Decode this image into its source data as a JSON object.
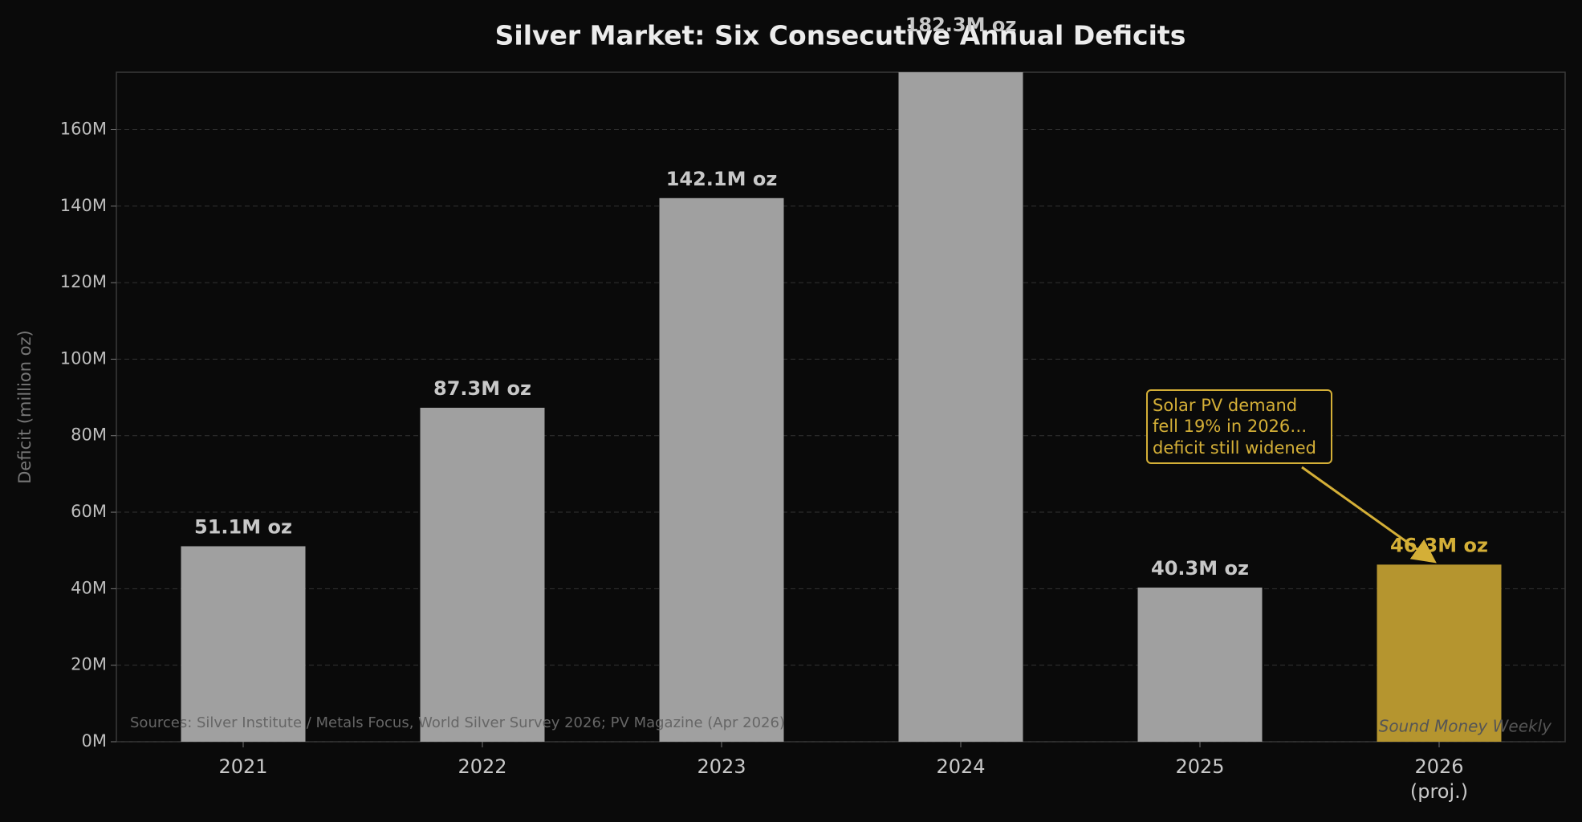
{
  "chart_data": {
    "type": "bar",
    "title": "Silver Market: Six Consecutive Annual Deficits",
    "y_label": "Deficit (million oz)",
    "categories": [
      "2021",
      "2022",
      "2023",
      "2024",
      "2025",
      "2026\n(proj.)"
    ],
    "values": [
      51.1,
      87.3,
      142.1,
      182.3,
      40.3,
      46.3
    ],
    "value_labels": [
      "51.1M oz",
      "87.3M oz",
      "142.1M oz",
      "182.3M oz",
      "40.3M oz",
      "46.3M oz"
    ],
    "colors": [
      "#a0a0a0",
      "#a0a0a0",
      "#a0a0a0",
      "#a0a0a0",
      "#a0a0a0",
      "#b5952f"
    ],
    "label_colors": [
      "#c8c8c8",
      "#c8c8c8",
      "#c8c8c8",
      "#c8c8c8",
      "#c8c8c8",
      "#d4af37"
    ],
    "ylim": [
      0,
      175
    ],
    "yticks": [
      {
        "value": 0,
        "label": "0M"
      },
      {
        "value": 20,
        "label": "20M"
      },
      {
        "value": 40,
        "label": "40M"
      },
      {
        "value": 60,
        "label": "60M"
      },
      {
        "value": 80,
        "label": "80M"
      },
      {
        "value": 100,
        "label": "100M"
      },
      {
        "value": 120,
        "label": "120M"
      },
      {
        "value": 140,
        "label": "140M"
      },
      {
        "value": 160,
        "label": "160M"
      }
    ],
    "grid": true,
    "annotation": "Solar PV demand\nfell 19% in 2026…\ndeficit still widened",
    "source": "Sources: Silver Institute / Metals Focus, World Silver Survey 2026; PV Magazine (Apr 2026)",
    "watermark": "Sound Money Weekly"
  }
}
